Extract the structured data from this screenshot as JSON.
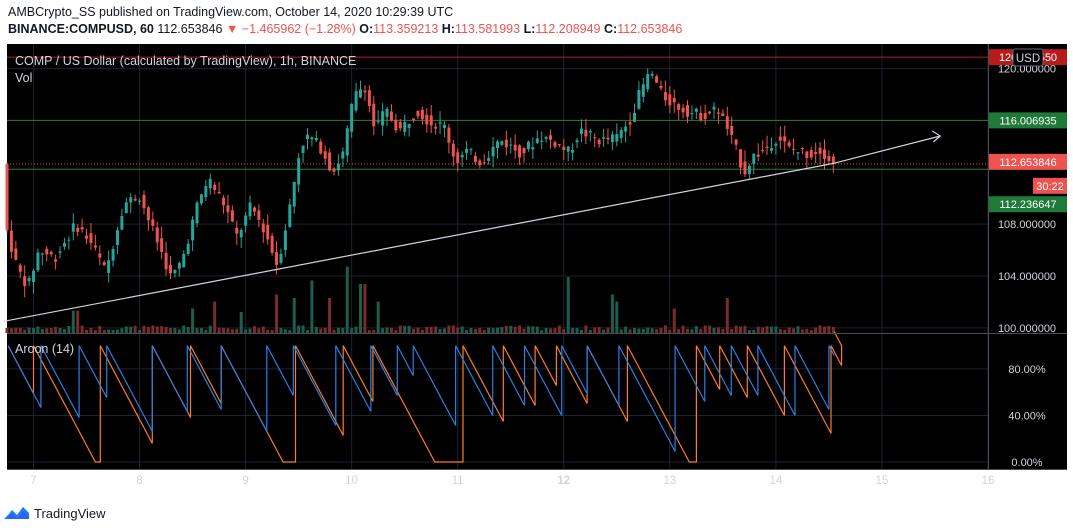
{
  "header": {
    "publisher_line": "AMBCrypto_SS published on TradingView.com, October 14, 2020 10:29:39 UTC",
    "symbol": "BINANCE:COMPUSD, 60",
    "last": "112.653846",
    "change": "▼ −1.465962 (−1.28%)",
    "o_label": "O:",
    "o_value": "113.359213",
    "h_label": "H:",
    "h_value": "113.581993",
    "l_label": "L:",
    "l_value": "112.208949",
    "c_label": "C:",
    "c_value": "112.653846"
  },
  "main_pane": {
    "legend_title": "COMP / US Dollar (calculated by TradingView), 1h, BINANCE",
    "legend_vol": "Vol",
    "currency_button": "USD",
    "price_labels": [
      {
        "value": 120.88355,
        "text": "120.883550",
        "color": "#b71c1c"
      },
      {
        "value": 116.006935,
        "text": "116.006935",
        "color": "#1f7a3a"
      },
      {
        "value": 112.653846,
        "text": "112.653846",
        "color": "#ef5350"
      },
      {
        "value": 112.236647,
        "text": "112.236647",
        "color": "#1f7a3a"
      }
    ],
    "countdown": "30:22"
  },
  "aroon_pane": {
    "legend_title": "Aroon (14)"
  },
  "footer": {
    "brand": "TradingView"
  },
  "colors": {
    "up": "#26a69a",
    "down": "#ef5350",
    "aroon_up": "#ff7b26",
    "aroon_down": "#2b7fe0",
    "trendline": "#d1d4dc",
    "grid": "#1f2230",
    "background": "#000000"
  },
  "chart_data": {
    "type": "candlestick",
    "x_ticks": [
      "7",
      "8",
      "9",
      "10",
      "11",
      "12",
      "13",
      "14",
      "15",
      "16"
    ],
    "y_ticks": [
      "100.000000",
      "104.000000",
      "108.000000",
      "120.000000"
    ],
    "ylim": [
      99.6,
      121.9
    ],
    "aroon_y_ticks": [
      "0.00%",
      "40.00%",
      "80.00%"
    ],
    "aroon_ylim": [
      -6,
      110
    ],
    "x_range_days": [
      6.75,
      16.0
    ],
    "trendline": {
      "x": [
        6.72,
        14.55
      ],
      "y": [
        100.5,
        112.7
      ],
      "ext_x": 15.55,
      "ext_y": 114.8
    },
    "horizontal_lines": [
      120.88355,
      116.006935,
      112.236647
    ],
    "price_line": 112.653846,
    "price_path": [
      [
        6.75,
        107.5
      ],
      [
        6.85,
        104.5
      ],
      [
        6.95,
        103.2
      ],
      [
        7.05,
        106.0
      ],
      [
        7.2,
        105.4
      ],
      [
        7.4,
        108.0
      ],
      [
        7.55,
        106.5
      ],
      [
        7.68,
        104.3
      ],
      [
        7.85,
        109.6
      ],
      [
        8.0,
        110.2
      ],
      [
        8.1,
        108.0
      ],
      [
        8.2,
        106.0
      ],
      [
        8.3,
        103.8
      ],
      [
        8.4,
        105.2
      ],
      [
        8.55,
        109.6
      ],
      [
        8.65,
        111.5
      ],
      [
        8.8,
        109.5
      ],
      [
        8.92,
        107.0
      ],
      [
        9.05,
        109.4
      ],
      [
        9.18,
        107.5
      ],
      [
        9.3,
        104.8
      ],
      [
        9.42,
        109.5
      ],
      [
        9.52,
        114.2
      ],
      [
        9.6,
        114.8
      ],
      [
        9.72,
        113.8
      ],
      [
        9.82,
        112.0
      ],
      [
        9.92,
        113.5
      ],
      [
        10.02,
        117.8
      ],
      [
        10.12,
        118.8
      ],
      [
        10.22,
        115.2
      ],
      [
        10.32,
        116.8
      ],
      [
        10.45,
        115.2
      ],
      [
        10.62,
        116.8
      ],
      [
        10.75,
        115.8
      ],
      [
        10.88,
        115.5
      ],
      [
        10.98,
        112.8
      ],
      [
        11.08,
        113.6
      ],
      [
        11.22,
        112.8
      ],
      [
        11.4,
        114.5
      ],
      [
        11.6,
        113.5
      ],
      [
        11.78,
        114.8
      ],
      [
        11.92,
        114.3
      ],
      [
        12.05,
        113.5
      ],
      [
        12.15,
        115.2
      ],
      [
        12.35,
        114.4
      ],
      [
        12.5,
        114.7
      ],
      [
        12.62,
        116.0
      ],
      [
        12.72,
        118.2
      ],
      [
        12.82,
        119.8
      ],
      [
        12.92,
        118.0
      ],
      [
        13.05,
        117.2
      ],
      [
        13.2,
        116.6
      ],
      [
        13.32,
        116.4
      ],
      [
        13.45,
        116.9
      ],
      [
        13.52,
        115.8
      ],
      [
        13.62,
        113.8
      ],
      [
        13.7,
        112.0
      ],
      [
        13.78,
        113.2
      ],
      [
        13.9,
        113.8
      ],
      [
        14.02,
        114.8
      ],
      [
        14.12,
        113.8
      ],
      [
        14.22,
        113.6
      ],
      [
        14.32,
        113.4
      ],
      [
        14.42,
        113.8
      ],
      [
        14.55,
        112.65
      ]
    ],
    "volume_spikes": [
      {
        "x": 7.4,
        "v": 0.32
      },
      {
        "x": 8.5,
        "v": 0.35
      },
      {
        "x": 8.72,
        "v": 0.45
      },
      {
        "x": 8.95,
        "v": 0.3
      },
      {
        "x": 9.3,
        "v": 0.55
      },
      {
        "x": 9.45,
        "v": 0.5
      },
      {
        "x": 9.62,
        "v": 0.75
      },
      {
        "x": 9.8,
        "v": 0.5
      },
      {
        "x": 9.95,
        "v": 0.95
      },
      {
        "x": 10.1,
        "v": 0.7
      },
      {
        "x": 10.25,
        "v": 0.45
      },
      {
        "x": 12.05,
        "v": 0.8
      },
      {
        "x": 12.45,
        "v": 0.55
      },
      {
        "x": 12.5,
        "v": 0.45
      },
      {
        "x": 13.05,
        "v": 0.35
      },
      {
        "x": 13.55,
        "v": 0.5
      }
    ],
    "aroon_up_events": [
      6.76,
      7.0,
      7.63,
      8.12,
      8.48,
      8.77,
      9.47,
      9.92,
      10.2,
      11.05,
      11.43,
      11.73,
      11.93,
      12.22,
      12.6,
      13.25,
      13.47,
      13.73,
      14.08,
      14.52,
      14.62
    ],
    "aroon_down_events": [
      6.76,
      7.07,
      7.43,
      7.69,
      8.12,
      8.45,
      8.77,
      9.2,
      9.45,
      9.85,
      10.18,
      10.43,
      10.58,
      10.98,
      11.33,
      11.63,
      11.98,
      12.22,
      12.52,
      13.05,
      13.33,
      13.58,
      13.83,
      14.18,
      14.5
    ]
  }
}
